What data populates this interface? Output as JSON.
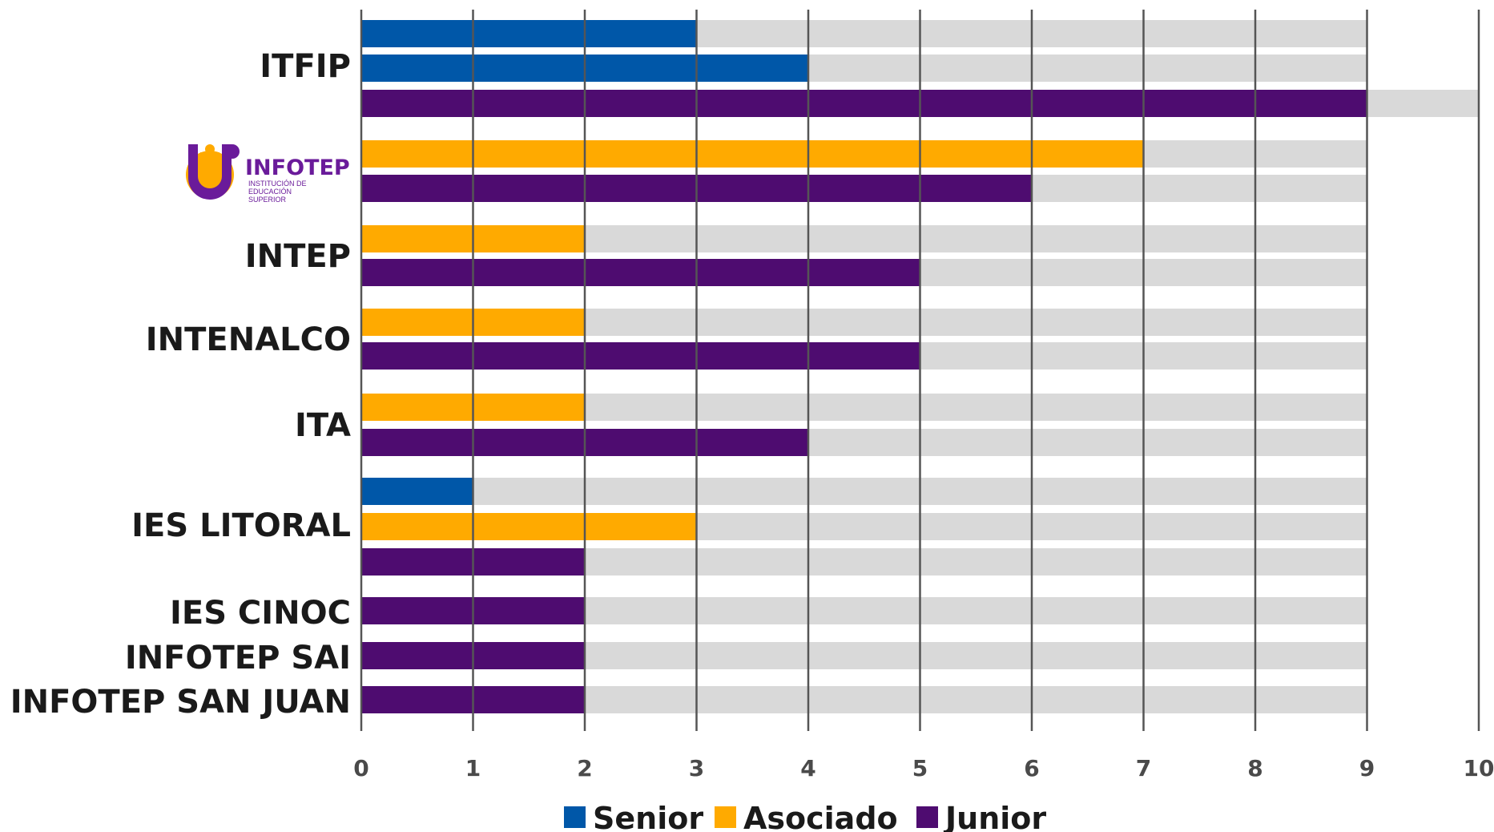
{
  "chart_data": {
    "type": "bar",
    "orientation": "horizontal",
    "xlim": [
      0,
      10
    ],
    "xticks": [
      "0",
      "1",
      "2",
      "3",
      "4",
      "5",
      "6",
      "7",
      "8",
      "9",
      "10"
    ],
    "grid": true,
    "legend_position": "bottom",
    "legend": [
      {
        "name": "Senior",
        "color": "#0057A8"
      },
      {
        "name": "Asociado",
        "color": "#FFAA00"
      },
      {
        "name": "Junior",
        "color": "#4E0C70"
      }
    ],
    "background_bar_color": "#D9D9D9",
    "groups": [
      {
        "label": "ITFIP",
        "bars": [
          {
            "series": "Senior",
            "value": 3,
            "track": 9
          },
          {
            "series": "Senior",
            "value": 4,
            "track": 9
          },
          {
            "series": "Junior",
            "value": 9,
            "track": 10
          }
        ]
      },
      {
        "label": "",
        "logo": {
          "name": "infotep-logo",
          "word": "INFOTEP",
          "sub": [
            "INSTITUCIÓN DE",
            "EDUCACIÓN",
            "SUPERIOR"
          ]
        },
        "bars": [
          {
            "series": "Asociado",
            "value": 7,
            "track": 9
          },
          {
            "series": "Junior",
            "value": 6,
            "track": 9
          }
        ]
      },
      {
        "label": "INTEP",
        "bars": [
          {
            "series": "Asociado",
            "value": 2,
            "track": 9
          },
          {
            "series": "Junior",
            "value": 5,
            "track": 9
          }
        ]
      },
      {
        "label": "INTENALCO",
        "bars": [
          {
            "series": "Asociado",
            "value": 2,
            "track": 9
          },
          {
            "series": "Junior",
            "value": 5,
            "track": 9
          }
        ]
      },
      {
        "label": "ITA",
        "bars": [
          {
            "series": "Asociado",
            "value": 2,
            "track": 9
          },
          {
            "series": "Junior",
            "value": 4,
            "track": 9
          }
        ]
      },
      {
        "label": "IES LITORAL",
        "bars": [
          {
            "series": "Senior",
            "value": 1,
            "track": 9
          },
          {
            "series": "Asociado",
            "value": 3,
            "track": 9
          },
          {
            "series": "Junior",
            "value": 2,
            "track": 9
          }
        ]
      },
      {
        "label": "IES CINOC",
        "bars": [
          {
            "series": "Junior",
            "value": 2,
            "track": 9
          }
        ]
      },
      {
        "label": "INFOTEP SAI",
        "bars": [
          {
            "series": "Junior",
            "value": 2,
            "track": 9
          }
        ]
      },
      {
        "label": "INFOTEP SAN JUAN",
        "bars": [
          {
            "series": "Junior",
            "value": 2,
            "track": 9
          }
        ]
      }
    ]
  }
}
